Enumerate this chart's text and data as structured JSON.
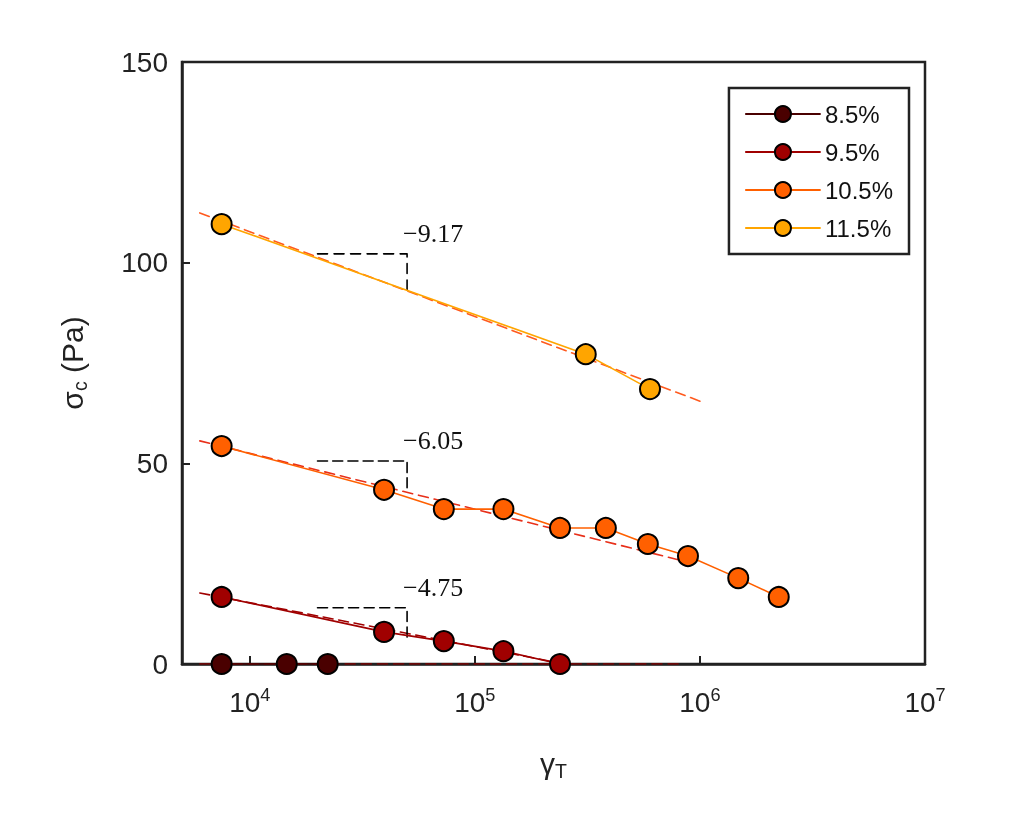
{
  "chart_data": {
    "type": "line",
    "xlabel": "γ$_{T}$",
    "ylabel": "σ$_{c}$ (Pa)",
    "log": "x",
    "xlim": [
      5000,
      10000000
    ],
    "xticks": [
      {
        "value": 10000,
        "label": "10$^{4}$"
      },
      {
        "value": 100000,
        "label": "10$^{5}$"
      },
      {
        "value": 1000000,
        "label": "10$^{6}$"
      },
      {
        "value": 10000000,
        "label": "10$^{7}$"
      }
    ],
    "ylim": [
      0,
      150
    ],
    "yticks": [
      0,
      50,
      100,
      150
    ],
    "grid": false,
    "legend": "top right",
    "marker": "circle",
    "line_style": "solid",
    "series": [
      {
        "name": "8.5%",
        "color": "#4a0000",
        "x": [
          7500,
          14600,
          22200
        ],
        "values": [
          0,
          0,
          0
        ]
      },
      {
        "name": "9.5%",
        "color": "#a00000",
        "x": [
          7500,
          39500,
          72800,
          134000,
          239000
        ],
        "values": [
          16.7,
          8,
          5.7,
          3.2,
          0
        ]
      },
      {
        "name": "10.5%",
        "color": "#ff6000",
        "x": [
          7500,
          39500,
          72800,
          134000,
          239000,
          382000,
          587000,
          885000,
          1480000,
          2240000
        ],
        "values": [
          54.3,
          43.4,
          38.6,
          38.6,
          33.9,
          33.9,
          29.9,
          26.9,
          21.4,
          16.7
        ]
      },
      {
        "name": "11.5%",
        "color": "#ffa500",
        "x": [
          7500,
          311000,
          600000
        ],
        "values": [
          109.6,
          77.2,
          68.5
        ]
      },
      {
        "type": "line",
        "color": "#800000",
        "line_style": "dashed",
        "marker": "none",
        "x": [
          6000,
          800000
        ],
        "values": [
          0,
          0
        ]
      },
      {
        "type": "line",
        "color": "#a00000",
        "line_style": "dashed",
        "marker": "none",
        "x": [
          6000,
          250000
        ],
        "values": [
          17.7,
          0
        ]
      },
      {
        "type": "line",
        "color": "#e8301a",
        "line_style": "dashed",
        "marker": "none",
        "x": [
          6000,
          800000
        ],
        "values": [
          55.6,
          26
        ]
      },
      {
        "type": "line",
        "color": "#ff5a1e",
        "line_style": "dashed",
        "marker": "none",
        "x": [
          6000,
          1000000
        ],
        "values": [
          112.4,
          65.5
        ]
      },
      {
        "type": "line",
        "color": "#000000",
        "line_style": "dashed",
        "marker": "none",
        "x": [
          20000,
          50000,
          50000
        ],
        "values": [
          102.2,
          102.2,
          93.2
        ]
      },
      {
        "type": "line",
        "color": "#000000",
        "line_style": "dashed",
        "marker": "none",
        "x": [
          20000,
          50000,
          50000
        ],
        "values": [
          50.6,
          50.6,
          43.9
        ]
      },
      {
        "type": "line",
        "color": "#000000",
        "line_style": "dashed",
        "marker": "none",
        "x": [
          20000,
          50000,
          50000
        ],
        "values": [
          14,
          14,
          6.7
        ]
      }
    ],
    "annotations": [
      "−9.17",
      "−6.05",
      "−4.75"
    ]
  }
}
